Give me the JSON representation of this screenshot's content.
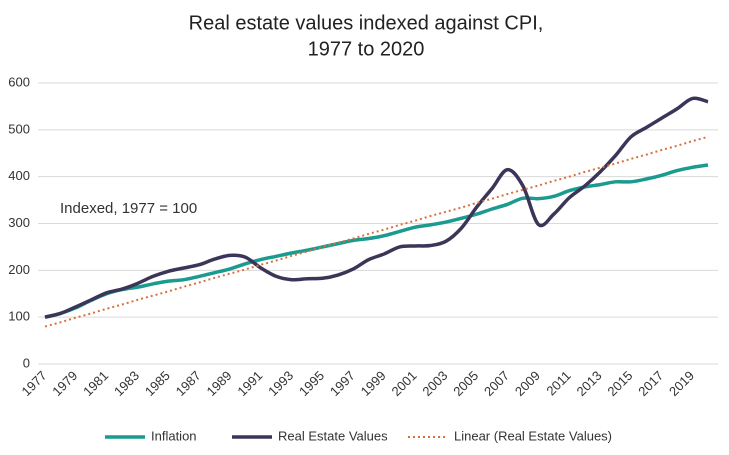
{
  "chart_data": {
    "type": "line",
    "title_lines": [
      "Real estate values indexed against CPI,",
      "1977 to 2020"
    ],
    "annotation": "Indexed, 1977 = 100",
    "categories": [
      "1977",
      null,
      "1979",
      null,
      "1981",
      null,
      "1983",
      null,
      "1985",
      null,
      "1987",
      null,
      "1989",
      null,
      "1991",
      null,
      "1993",
      null,
      "1995",
      null,
      "1997",
      null,
      "1999",
      null,
      "2001",
      null,
      "2003",
      null,
      "2005",
      null,
      "2007",
      null,
      "2009",
      null,
      "2011",
      null,
      "2013",
      null,
      "2015",
      null,
      "2017",
      null,
      "2019",
      null
    ],
    "series": [
      {
        "name": "Inflation",
        "color": "#1b9a8f",
        "style": "solid",
        "values": [
          100,
          108,
          120,
          136,
          150,
          159,
          164,
          171,
          177,
          180,
          187,
          195,
          203,
          214,
          223,
          230,
          237,
          243,
          250,
          257,
          264,
          268,
          274,
          283,
          292,
          297,
          303,
          311,
          320,
          331,
          341,
          354,
          353,
          358,
          370,
          378,
          383,
          389,
          389,
          395,
          403,
          413,
          420,
          425
        ]
      },
      {
        "name": "Real Estate Values",
        "color": "#3b3558",
        "style": "solid",
        "values": [
          100,
          108,
          122,
          137,
          152,
          160,
          172,
          187,
          198,
          205,
          212,
          224,
          232,
          228,
          205,
          187,
          180,
          182,
          183,
          190,
          203,
          223,
          235,
          250,
          252,
          253,
          262,
          290,
          335,
          375,
          415,
          380,
          298,
          320,
          355,
          380,
          410,
          445,
          485,
          505,
          525,
          545,
          567,
          560
        ]
      },
      {
        "name": "Linear (Real Estate Values)",
        "color": "#d9703a",
        "style": "dotted",
        "values": [
          80,
          89,
          99,
          108,
          118,
          127,
          137,
          146,
          155,
          165,
          174,
          184,
          193,
          202,
          212,
          221,
          231,
          240,
          250,
          259,
          268,
          278,
          287,
          297,
          306,
          316,
          325,
          334,
          344,
          353,
          363,
          372,
          381,
          391,
          400,
          410,
          419,
          428,
          438,
          447,
          457,
          466,
          476,
          485
        ]
      }
    ],
    "ylim": [
      0,
      600
    ],
    "yticks": [
      0,
      100,
      200,
      300,
      400,
      500,
      600
    ],
    "grid": true,
    "legend": "bottom"
  }
}
